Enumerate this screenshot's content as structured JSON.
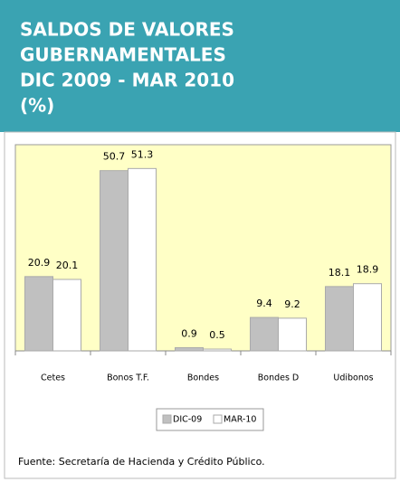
{
  "chart_data": {
    "type": "bar",
    "title": [
      "SALDOS DE VALORES",
      "GUBERNAMENTALES",
      "DIC 2009  - MAR 2010",
      "(%)"
    ],
    "categories": [
      "Cetes",
      "Bonos T.F.",
      "Bondes",
      "Bondes D",
      "Udibonos"
    ],
    "series": [
      {
        "name": "DIC-09",
        "color": "#c0c0c0",
        "values": [
          20.9,
          50.7,
          0.9,
          9.4,
          18.1
        ]
      },
      {
        "name": "MAR-10",
        "color": "#ffffff",
        "values": [
          20.1,
          51.3,
          0.5,
          9.2,
          18.9
        ]
      }
    ],
    "ylim": [
      0,
      58
    ],
    "source": "Fuente: Secretaría de Hacienda y Crédito Público."
  }
}
